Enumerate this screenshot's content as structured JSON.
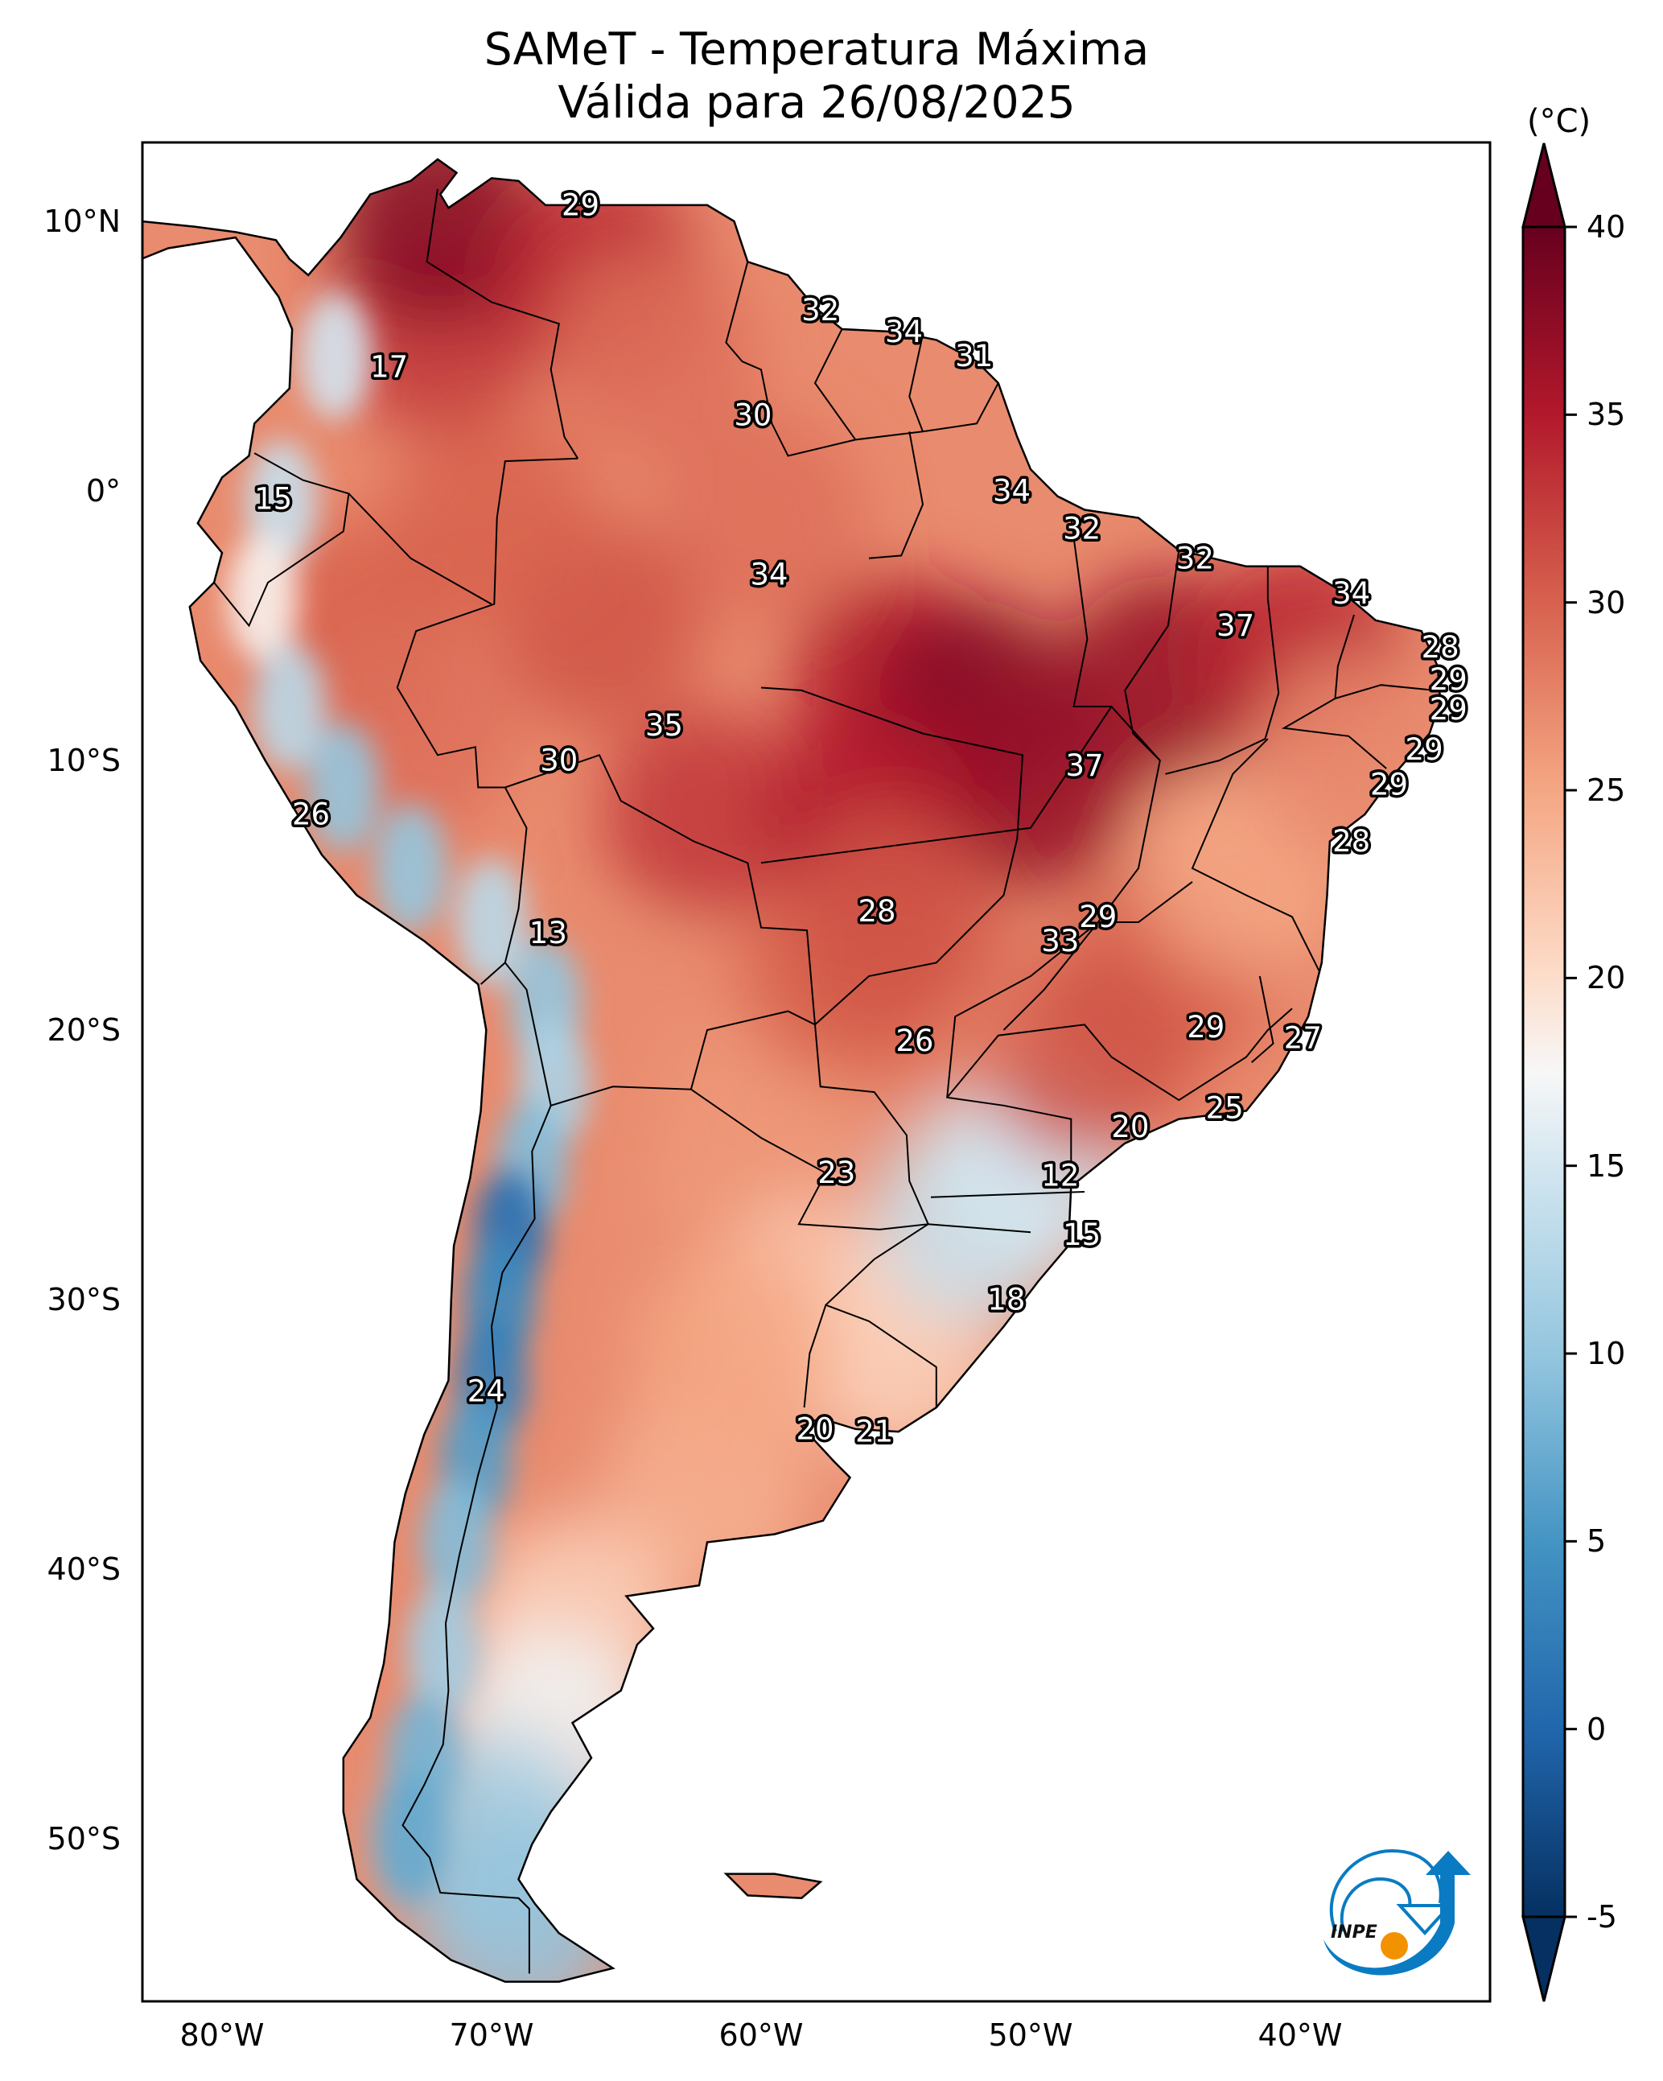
{
  "chart_data": {
    "type": "heatmap",
    "title": "SAMeT - Temperatura Máxima",
    "subtitle": "Válida para 26/08/2025",
    "variable": "Temperatura Máxima",
    "units": "(°C)",
    "region": "South America",
    "xlabel": "",
    "ylabel": "",
    "x_ticks": [
      {
        "value": -80,
        "label": "80°W"
      },
      {
        "value": -70,
        "label": "70°W"
      },
      {
        "value": -60,
        "label": "60°W"
      },
      {
        "value": -50,
        "label": "50°W"
      },
      {
        "value": -40,
        "label": "40°W"
      }
    ],
    "y_ticks": [
      {
        "value": 10,
        "label": "10°N"
      },
      {
        "value": 0,
        "label": "0°"
      },
      {
        "value": -10,
        "label": "10°S"
      },
      {
        "value": -20,
        "label": "20°S"
      },
      {
        "value": -30,
        "label": "30°S"
      },
      {
        "value": -40,
        "label": "40°S"
      },
      {
        "value": -50,
        "label": "50°S"
      }
    ],
    "xlim": [
      -83,
      -33
    ],
    "ylim": [
      -56,
      13
    ],
    "grid": false,
    "colorbar": {
      "label": "(°C)",
      "colormap": "RdBu_r",
      "range": [
        -5,
        40
      ],
      "extend": "both",
      "ticks": [
        40,
        35,
        30,
        25,
        20,
        15,
        10,
        5,
        0,
        -5
      ],
      "tick_labels": [
        "40",
        "35",
        "30",
        "25",
        "20",
        "15",
        "10",
        "5",
        "0",
        "-5"
      ],
      "placement": "right"
    },
    "point_labels": [
      {
        "lon": -66.7,
        "lat": 10.6,
        "value": 29
      },
      {
        "lon": -57.8,
        "lat": 6.7,
        "value": 32
      },
      {
        "lon": -54.7,
        "lat": 5.9,
        "value": 34
      },
      {
        "lon": -52.1,
        "lat": 5.0,
        "value": 31
      },
      {
        "lon": -73.8,
        "lat": 4.6,
        "value": 17
      },
      {
        "lon": -60.3,
        "lat": 2.8,
        "value": 30
      },
      {
        "lon": -78.1,
        "lat": -0.3,
        "value": 15
      },
      {
        "lon": -50.7,
        "lat": 0.0,
        "value": 34
      },
      {
        "lon": -48.1,
        "lat": -1.4,
        "value": 32
      },
      {
        "lon": -43.9,
        "lat": -2.5,
        "value": 32
      },
      {
        "lon": -59.7,
        "lat": -3.1,
        "value": 34
      },
      {
        "lon": -38.1,
        "lat": -3.8,
        "value": 34
      },
      {
        "lon": -42.4,
        "lat": -5.0,
        "value": 37
      },
      {
        "lon": -34.8,
        "lat": -5.8,
        "value": 28
      },
      {
        "lon": -34.5,
        "lat": -7.0,
        "value": 29
      },
      {
        "lon": -34.5,
        "lat": -8.1,
        "value": 29
      },
      {
        "lon": -63.6,
        "lat": -8.7,
        "value": 35
      },
      {
        "lon": -35.4,
        "lat": -9.6,
        "value": 29
      },
      {
        "lon": -67.5,
        "lat": -10.0,
        "value": 30
      },
      {
        "lon": -48.0,
        "lat": -10.2,
        "value": 37
      },
      {
        "lon": -36.7,
        "lat": -10.9,
        "value": 29
      },
      {
        "lon": -76.7,
        "lat": -12.0,
        "value": 26
      },
      {
        "lon": -38.1,
        "lat": -13.0,
        "value": 28
      },
      {
        "lon": -55.7,
        "lat": -15.6,
        "value": 28
      },
      {
        "lon": -47.5,
        "lat": -15.8,
        "value": 29
      },
      {
        "lon": -67.9,
        "lat": -16.4,
        "value": 13
      },
      {
        "lon": -48.9,
        "lat": -16.7,
        "value": 33
      },
      {
        "lon": -43.5,
        "lat": -19.9,
        "value": 29
      },
      {
        "lon": -39.9,
        "lat": -20.3,
        "value": 27
      },
      {
        "lon": -54.3,
        "lat": -20.4,
        "value": 26
      },
      {
        "lon": -42.8,
        "lat": -22.9,
        "value": 25
      },
      {
        "lon": -46.3,
        "lat": -23.6,
        "value": 20
      },
      {
        "lon": -57.2,
        "lat": -25.3,
        "value": 23
      },
      {
        "lon": -48.9,
        "lat": -25.4,
        "value": 12
      },
      {
        "lon": -48.1,
        "lat": -27.6,
        "value": 15
      },
      {
        "lon": -50.9,
        "lat": -30.0,
        "value": 18
      },
      {
        "lon": -70.2,
        "lat": -33.4,
        "value": 24
      },
      {
        "lon": -58.0,
        "lat": -34.8,
        "value": 20
      },
      {
        "lon": -55.8,
        "lat": -34.9,
        "value": 21
      }
    ]
  },
  "logo": {
    "text": "INPE",
    "colors": {
      "blue": "#0a7bc2",
      "orange": "#f39200"
    }
  }
}
